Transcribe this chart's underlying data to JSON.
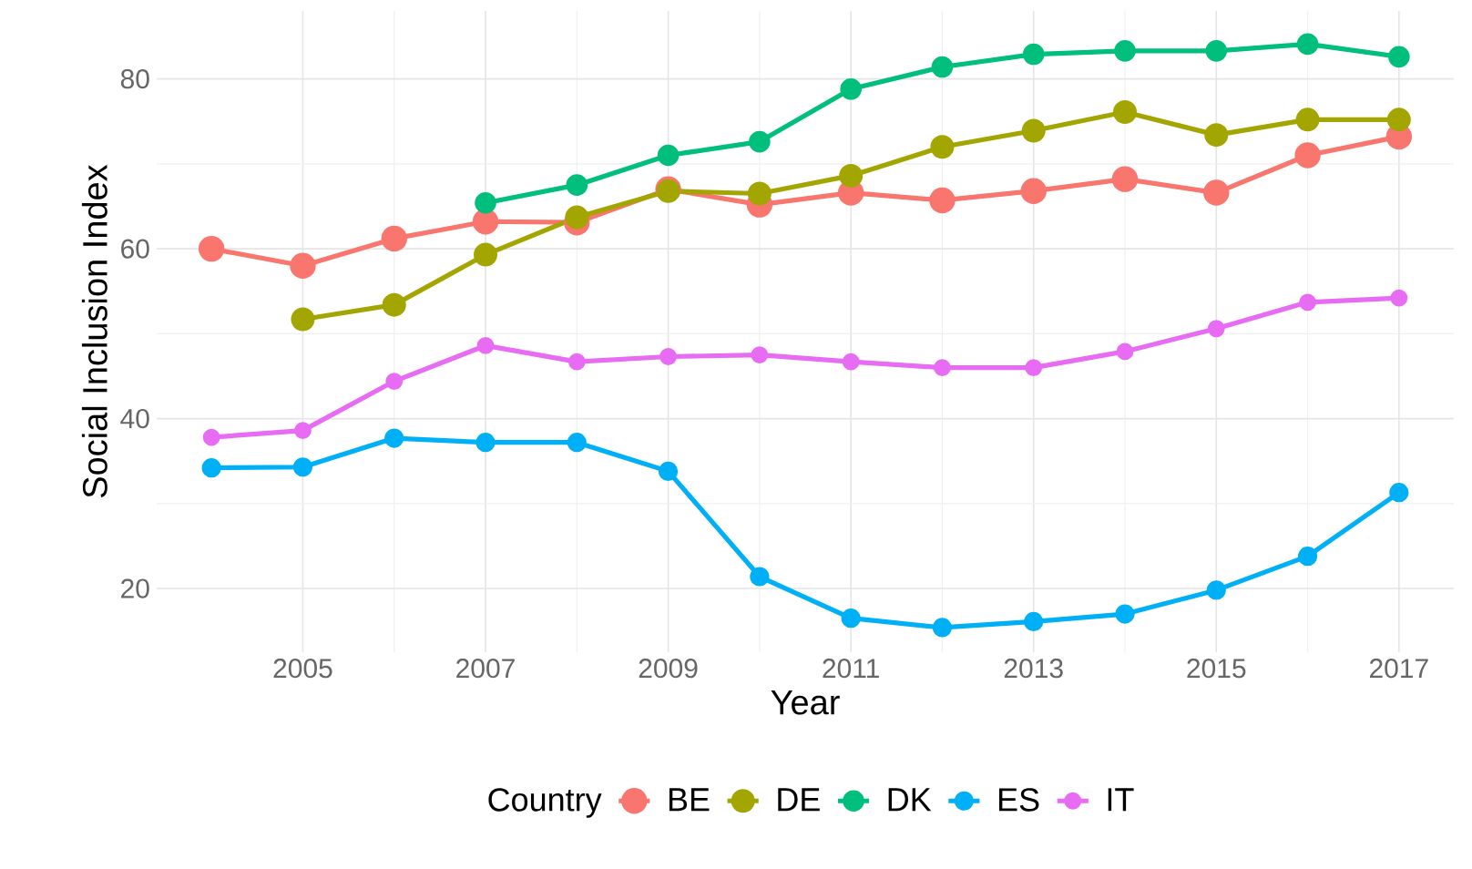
{
  "chart_data": {
    "type": "line",
    "xlabel": "Year",
    "ylabel": "Social Inclusion Index",
    "legend_title": "Country",
    "x": [
      2004,
      2005,
      2006,
      2007,
      2008,
      2009,
      2010,
      2011,
      2012,
      2013,
      2014,
      2015,
      2016,
      2017
    ],
    "series": [
      {
        "name": "BE",
        "color": "#f8766d",
        "values": [
          60.0,
          58.0,
          61.2,
          63.2,
          63.1,
          67.0,
          65.2,
          66.6,
          65.7,
          66.8,
          68.2,
          66.6,
          71.0,
          73.2
        ]
      },
      {
        "name": "DE",
        "color": "#a3a500",
        "values": [
          null,
          51.7,
          53.4,
          59.3,
          63.7,
          66.8,
          66.5,
          68.6,
          72.0,
          73.9,
          76.1,
          73.4,
          75.2,
          75.2
        ]
      },
      {
        "name": "DK",
        "color": "#00bf7d",
        "values": [
          null,
          null,
          null,
          65.4,
          67.5,
          71.0,
          72.6,
          78.8,
          81.4,
          82.9,
          83.3,
          83.3,
          84.1,
          82.6
        ]
      },
      {
        "name": "ES",
        "color": "#00b0f6",
        "values": [
          34.2,
          34.3,
          37.7,
          37.2,
          37.2,
          33.8,
          21.4,
          16.5,
          15.4,
          16.1,
          17.0,
          19.8,
          23.8,
          31.3
        ]
      },
      {
        "name": "IT",
        "color": "#e76bf3",
        "values": [
          37.8,
          38.6,
          44.4,
          48.6,
          46.7,
          47.3,
          47.5,
          46.7,
          46.0,
          46.0,
          47.9,
          50.6,
          53.7,
          54.2
        ]
      }
    ],
    "xlim": [
      2003.4,
      2017.6
    ],
    "ylim": [
      12.5,
      88
    ],
    "xticks": [
      2005,
      2007,
      2009,
      2011,
      2013,
      2015,
      2017
    ],
    "yticks": [
      20,
      40,
      60,
      80
    ],
    "grid": true,
    "legend": "bottom",
    "marker": "circle",
    "line_style": "solid"
  }
}
